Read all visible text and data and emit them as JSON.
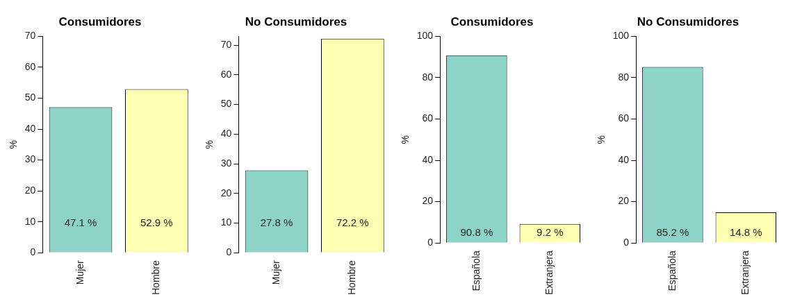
{
  "chart_data": [
    {
      "type": "bar",
      "title": "Consumidores",
      "ylabel": "%",
      "categories": [
        "Mujer",
        "Hombre"
      ],
      "values": [
        47.1,
        52.9
      ],
      "colors": [
        "#8dd3c7",
        "#ffffb3"
      ],
      "value_labels": [
        "47.1 %",
        "52.9 %"
      ],
      "ylim": [
        0,
        70
      ],
      "yticks": [
        0,
        10,
        20,
        30,
        40,
        50,
        60,
        70
      ],
      "grid": false,
      "legend": false
    },
    {
      "type": "bar",
      "title": "No Consumidores",
      "ylabel": "%",
      "categories": [
        "Mujer",
        "Hombre"
      ],
      "values": [
        27.8,
        72.2
      ],
      "colors": [
        "#8dd3c7",
        "#ffffb3"
      ],
      "value_labels": [
        "27.8 %",
        "72.2 %"
      ],
      "ylim": [
        0,
        73
      ],
      "yticks": [
        0,
        10,
        20,
        30,
        40,
        50,
        60,
        70
      ],
      "grid": false,
      "legend": false
    },
    {
      "type": "bar",
      "title": "Consumidores",
      "ylabel": "%",
      "categories": [
        "Española",
        "Extranjera"
      ],
      "values": [
        90.8,
        9.2
      ],
      "colors": [
        "#8dd3c7",
        "#ffffb3"
      ],
      "value_labels": [
        "90.8 %",
        "9.2 %"
      ],
      "ylim": [
        0,
        100
      ],
      "yticks": [
        0,
        20,
        40,
        60,
        80,
        100
      ],
      "grid": false,
      "legend": false
    },
    {
      "type": "bar",
      "title": "No Consumidores",
      "ylabel": "%",
      "categories": [
        "Española",
        "Extranjera"
      ],
      "values": [
        85.2,
        14.8
      ],
      "colors": [
        "#8dd3c7",
        "#ffffb3"
      ],
      "value_labels": [
        "85.2 %",
        "14.8 %"
      ],
      "ylim": [
        0,
        100
      ],
      "yticks": [
        0,
        20,
        40,
        60,
        80,
        100
      ],
      "grid": false,
      "legend": false
    }
  ]
}
